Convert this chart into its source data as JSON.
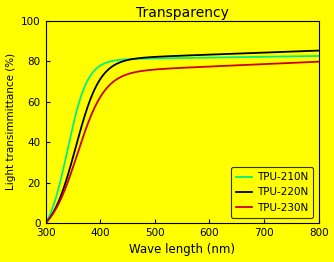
{
  "title": "Transparency",
  "xlabel": "Wave length (nm)",
  "ylabel": "Light transimmittance (%)",
  "background_color": "#ffff00",
  "plot_bg_color": "#ffff00",
  "xlim": [
    300,
    800
  ],
  "ylim": [
    0,
    100
  ],
  "xticks": [
    300,
    400,
    500,
    600,
    700,
    800
  ],
  "yticks": [
    0,
    20,
    40,
    60,
    80,
    100
  ],
  "series": [
    {
      "label": "TPU-210N",
      "color": "#00ee88",
      "midpoint": 340,
      "steepness": 0.055,
      "plateau": 89.5,
      "slow_rise": 0.004
    },
    {
      "label": "TPU-220N",
      "color": "#000000",
      "midpoint": 355,
      "steepness": 0.045,
      "plateau": 87.0,
      "slow_rise": 0.01
    },
    {
      "label": "TPU-230N",
      "color": "#cc0000",
      "midpoint": 358,
      "steepness": 0.04,
      "plateau": 81.0,
      "slow_rise": 0.012
    }
  ]
}
